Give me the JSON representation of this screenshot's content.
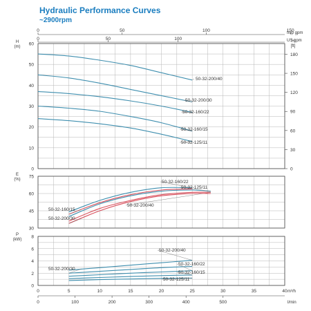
{
  "header": {
    "title": "Hydraulic Performance Curves",
    "subtitle": "~2900rpm"
  },
  "colors": {
    "teal": "#3e8eae",
    "red": "#d94f5c",
    "grid": "#b5b5b5",
    "frame": "#444444",
    "title": "#1a7dbf"
  },
  "chart_data": {
    "type": "line",
    "x_units": {
      "m3h": {
        "label": "m³/h",
        "ticks": [
          0,
          5,
          10,
          15,
          20,
          25,
          30,
          35,
          40
        ],
        "range": [
          0,
          40
        ]
      },
      "lmin": {
        "label": "l/min",
        "ticks": [
          0,
          100,
          200,
          300,
          400,
          500
        ]
      },
      "imp_gpm": {
        "label": "Imp gpm",
        "ticks": [
          0,
          50,
          100,
          150
        ]
      },
      "us_gpm": {
        "label": "US gpm",
        "ticks": [
          0,
          50,
          100
        ]
      }
    },
    "panels": [
      {
        "id": "head",
        "axis_label": "H",
        "unit": "(m)",
        "ylim": [
          0,
          60
        ],
        "yticks": [
          0,
          10,
          20,
          30,
          40,
          50,
          60
        ],
        "right_axis": {
          "label": "H",
          "unit": "[ft]",
          "ticks": [
            0,
            30,
            60,
            90,
            120,
            150,
            180
          ]
        },
        "series": [
          {
            "name": "50-32-200/40",
            "label": "50-32-200/40",
            "x": [
              0,
              5,
              10,
              15,
              20,
              25
            ],
            "y": [
              55,
              54,
              52,
              49.5,
              46,
              42.5
            ]
          },
          {
            "name": "50-32-200/30",
            "label": "50-32-200/30",
            "x": [
              0,
              5,
              10,
              15,
              20,
              25
            ],
            "y": [
              45,
              43.5,
              41,
              38,
              35,
              32
            ]
          },
          {
            "name": "50-32-160/22",
            "label": "50-32-160/22",
            "x": [
              0,
              5,
              10,
              15,
              20,
              25
            ],
            "y": [
              37,
              36,
              34.5,
              32.5,
              30,
              27
            ]
          },
          {
            "name": "50-32-160/15",
            "label": "50-32-160/15",
            "x": [
              0,
              5,
              10,
              15,
              20,
              25
            ],
            "y": [
              30,
              29,
              27.5,
              25,
              22,
              18
            ]
          },
          {
            "name": "50-32-125/11",
            "label": "50-32-125/11",
            "x": [
              0,
              5,
              10,
              15,
              20,
              25
            ],
            "y": [
              24,
              23,
              21.5,
              19.5,
              16.5,
              13
            ]
          }
        ]
      },
      {
        "id": "efficiency",
        "axis_label": "E",
        "unit": "(%)",
        "ylim": [
          30,
          75
        ],
        "yticks": [
          30,
          45,
          60,
          75
        ],
        "series": [
          {
            "name": "50-32-160/22",
            "label": "50-32-160/22",
            "x": [
              5,
              10,
              15,
              20,
              25
            ],
            "y": [
              44,
              54,
              61,
              65,
              65
            ]
          },
          {
            "name": "50-32-125/11",
            "label": "50-32-125/11",
            "x": [
              5,
              10,
              15,
              20,
              25,
              28
            ],
            "y": [
              40,
              51,
              58,
              62,
              63,
              62
            ]
          },
          {
            "name": "50-32-160/15",
            "label": "50-32-160/15",
            "x": [
              5,
              10,
              15,
              20,
              25
            ],
            "y": [
              42,
              52,
              59,
              63,
              64
            ]
          },
          {
            "name": "50-32-200/40",
            "label": "50-32-200/40",
            "x": [
              5,
              10,
              15,
              20,
              25,
              28
            ],
            "y": [
              36,
              47,
              54,
              59,
              61,
              61
            ]
          },
          {
            "name": "50-32-200/30",
            "label": "50-32-200/30",
            "x": [
              5,
              10,
              15,
              20,
              25,
              28
            ],
            "y": [
              34,
              45,
              53,
              58,
              60,
              60
            ]
          }
        ]
      },
      {
        "id": "power",
        "axis_label": "P",
        "unit": "(kW)",
        "ylim": [
          0,
          8
        ],
        "yticks": [
          0,
          2,
          4,
          6,
          8
        ],
        "series": [
          {
            "name": "50-32-200/40",
            "label": "50-32-200/40",
            "x": [
              5,
              10,
              15,
              20,
              25
            ],
            "y": [
              2.5,
              2.9,
              3.3,
              3.7,
              4.1
            ]
          },
          {
            "name": "50-32-200/30",
            "label": "50-32-200/30",
            "x": [
              5,
              10,
              15,
              20,
              25
            ],
            "y": [
              2.0,
              2.3,
              2.6,
              2.9,
              3.1
            ]
          },
          {
            "name": "50-32-160/22",
            "label": "50-32-160/22",
            "x": [
              5,
              10,
              15,
              20,
              25
            ],
            "y": [
              1.5,
              1.75,
              2.0,
              2.2,
              2.4
            ]
          },
          {
            "name": "50-32-160/15",
            "label": "50-32-160/15",
            "x": [
              5,
              10,
              15,
              20,
              25
            ],
            "y": [
              1.1,
              1.3,
              1.45,
              1.6,
              1.7
            ]
          },
          {
            "name": "50-32-125/11",
            "label": "50-32-125/11",
            "x": [
              5,
              10,
              15,
              20,
              25
            ],
            "y": [
              0.8,
              0.95,
              1.05,
              1.15,
              1.2
            ]
          }
        ]
      }
    ]
  }
}
